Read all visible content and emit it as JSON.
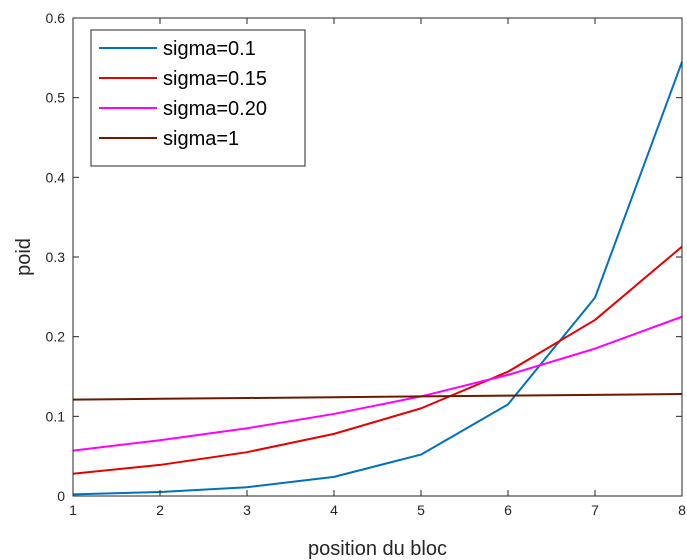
{
  "chart_data": {
    "type": "line",
    "title": "",
    "xlabel": "position du bloc",
    "ylabel": "poid",
    "x": [
      1,
      2,
      3,
      4,
      5,
      6,
      7,
      8
    ],
    "xlim": [
      1,
      8
    ],
    "ylim": [
      0,
      0.6
    ],
    "xticks": [
      "1",
      "2",
      "3",
      "4",
      "5",
      "6",
      "7",
      "8"
    ],
    "yticks": [
      "0",
      "0.1",
      "0.2",
      "0.3",
      "0.4",
      "0.5",
      "0.6"
    ],
    "grid": false,
    "legend_position": "top-left",
    "series": [
      {
        "name": "sigma=0.1",
        "color": "#0072BD",
        "values": [
          0.002,
          0.005,
          0.011,
          0.024,
          0.052,
          0.115,
          0.249,
          0.545
        ]
      },
      {
        "name": "sigma=0.15",
        "color": "#E60000",
        "values": [
          0.028,
          0.039,
          0.055,
          0.078,
          0.11,
          0.156,
          0.221,
          0.313
        ]
      },
      {
        "name": "sigma=0.20",
        "color": "#FF00FF",
        "values": [
          0.057,
          0.07,
          0.085,
          0.103,
          0.125,
          0.152,
          0.185,
          0.225
        ]
      },
      {
        "name": "sigma=1",
        "color": "#6B1A00",
        "values": [
          0.121,
          0.122,
          0.123,
          0.124,
          0.125,
          0.126,
          0.127,
          0.128
        ]
      }
    ]
  }
}
